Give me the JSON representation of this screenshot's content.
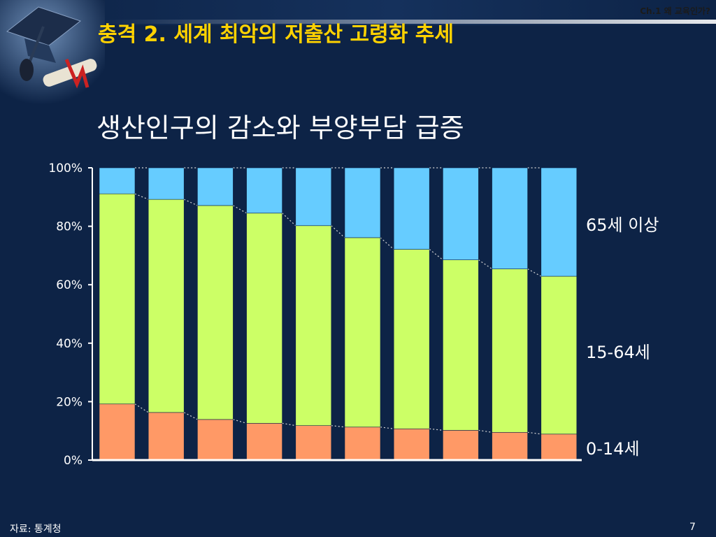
{
  "header": {
    "title": "충격 2. 세계 최악의 저출산 고령화 추세",
    "chapter": "Ch.1 왜 교육인가?"
  },
  "subtitle": "생산인구의 감소와 부양부담 급증",
  "footer": {
    "source": "자료: 통계청",
    "page_number": "7"
  },
  "colors": {
    "background": "#0d2346",
    "title": "#ffd200",
    "age_0_14": "#ff9966",
    "age_15_64": "#ccff66",
    "age_65_plus": "#66ccff"
  },
  "chart_data": {
    "type": "bar",
    "stacked": true,
    "yticks": [
      "0%",
      "20%",
      "40%",
      "60%",
      "80%",
      "100%"
    ],
    "ylim": [
      0,
      100
    ],
    "categories": [
      "",
      "",
      "",
      "",
      "",
      "",
      "",
      "",
      "",
      ""
    ],
    "series": [
      {
        "name": "0-14세",
        "values": [
          19.2,
          16.3,
          13.9,
          12.6,
          11.8,
          11.3,
          10.7,
          10.2,
          9.5,
          8.9
        ]
      },
      {
        "name": "15-64세",
        "values": [
          71.9,
          72.9,
          73.2,
          71.9,
          68.4,
          64.8,
          61.4,
          58.3,
          55.9,
          54.0
        ]
      },
      {
        "name": "65세 이상",
        "values": [
          8.9,
          10.8,
          12.9,
          15.5,
          19.8,
          23.9,
          27.9,
          31.5,
          34.6,
          37.1
        ]
      }
    ],
    "grid": false,
    "connector_lines": true,
    "legend_placement": "right"
  }
}
